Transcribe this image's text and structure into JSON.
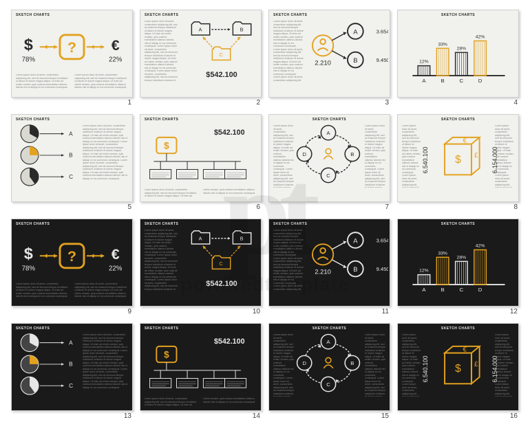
{
  "watermark": {
    "logo": "pt",
    "text": "poweredtemplate"
  },
  "common": {
    "title": "SKETCH CHARTS",
    "accent": "#e3a21f",
    "stroke_light": "#2a2a2a",
    "stroke_dark": "#e6e6e6",
    "gray_text": "#8a8a8a"
  },
  "slides": [
    {
      "id": 1,
      "theme": "light",
      "variant": "currency",
      "left_sym": "$",
      "left_val": "78%",
      "right_sym": "€",
      "right_val": "22%",
      "center": "?"
    },
    {
      "id": 2,
      "theme": "light",
      "variant": "folders",
      "labels": [
        "A",
        "B",
        "C"
      ],
      "value": "$542.100"
    },
    {
      "id": 3,
      "theme": "light",
      "variant": "people",
      "center_val": "2.210",
      "a_val": "3.654",
      "b_val": "9.450",
      "labels": [
        "A",
        "B"
      ]
    },
    {
      "id": 4,
      "theme": "light",
      "variant": "bars",
      "cats": [
        "A",
        "B",
        "C",
        "D"
      ],
      "vals": [
        12,
        33,
        28,
        42
      ],
      "colors": [
        "#2a2a2a",
        "#e3a21f",
        "#2a2a2a",
        "#e3a21f"
      ]
    },
    {
      "id": 5,
      "theme": "light",
      "variant": "pies",
      "labels": [
        "A",
        "B",
        "C"
      ],
      "pie_colors": [
        [
          "#2a2a2a",
          "#d9d9d2"
        ],
        [
          "#e3a21f",
          "#d9d9d2"
        ],
        [
          "#2a2a2a",
          "#d9d9d2"
        ]
      ],
      "fracs": [
        0.33,
        0.25,
        0.4
      ]
    },
    {
      "id": 6,
      "theme": "light",
      "variant": "tree",
      "value": "$542.100"
    },
    {
      "id": 7,
      "theme": "light",
      "variant": "cycle",
      "labels": [
        "A",
        "B",
        "C",
        "D"
      ]
    },
    {
      "id": 8,
      "theme": "light",
      "variant": "cube",
      "faces": [
        "$",
        "€",
        "£"
      ],
      "left_val": "6.540.100",
      "right_val": "6.154.000"
    },
    {
      "id": 9,
      "theme": "dark",
      "variant": "currency",
      "left_sym": "$",
      "left_val": "78%",
      "right_sym": "€",
      "right_val": "22%",
      "center": "?"
    },
    {
      "id": 10,
      "theme": "dark",
      "variant": "folders",
      "labels": [
        "A",
        "B",
        "C"
      ],
      "value": "$542.100"
    },
    {
      "id": 11,
      "theme": "dark",
      "variant": "people",
      "center_val": "2.210",
      "a_val": "3.654",
      "b_val": "9.450",
      "labels": [
        "A",
        "B"
      ]
    },
    {
      "id": 12,
      "theme": "dark",
      "variant": "bars",
      "cats": [
        "A",
        "B",
        "C",
        "D"
      ],
      "vals": [
        12,
        33,
        28,
        42
      ],
      "colors": [
        "#e6e6e6",
        "#e3a21f",
        "#e6e6e6",
        "#e3a21f"
      ]
    },
    {
      "id": 13,
      "theme": "dark",
      "variant": "pies",
      "labels": [
        "A",
        "B",
        "C"
      ],
      "pie_colors": [
        [
          "#e6e6e6",
          "#444"
        ],
        [
          "#e3a21f",
          "#444"
        ],
        [
          "#e6e6e6",
          "#444"
        ]
      ],
      "fracs": [
        0.33,
        0.25,
        0.4
      ]
    },
    {
      "id": 14,
      "theme": "dark",
      "variant": "tree",
      "value": "$542.100"
    },
    {
      "id": 15,
      "theme": "dark",
      "variant": "cycle",
      "labels": [
        "A",
        "B",
        "C",
        "D"
      ]
    },
    {
      "id": 16,
      "theme": "dark",
      "variant": "cube",
      "faces": [
        "$",
        "€",
        "£"
      ],
      "left_val": "6.540.100",
      "right_val": "6.154.000"
    }
  ]
}
